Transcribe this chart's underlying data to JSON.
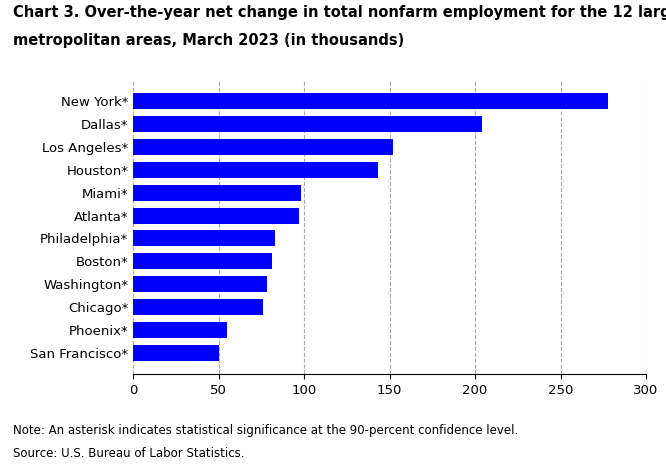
{
  "title_line1": "Chart 3. Over-the-year net change in total nonfarm employment for the 12 largest",
  "title_line2": "metropolitan areas, March 2023 (in thousands)",
  "categories": [
    "San Francisco*",
    "Phoenix*",
    "Chicago*",
    "Washington*",
    "Boston*",
    "Philadelphia*",
    "Atlanta*",
    "Miami*",
    "Houston*",
    "Los Angeles*",
    "Dallas*",
    "New York*"
  ],
  "values": [
    50,
    55,
    76,
    78,
    81,
    83,
    97,
    98,
    143,
    152,
    204,
    278
  ],
  "bar_color": "#0000FF",
  "xlim": [
    0,
    300
  ],
  "xticks": [
    0,
    50,
    100,
    150,
    200,
    250,
    300
  ],
  "note": "Note: An asterisk indicates statistical significance at the 90-percent confidence level.",
  "source": "Source: U.S. Bureau of Labor Statistics.",
  "title_fontsize": 10.5,
  "tick_fontsize": 9.5,
  "note_fontsize": 8.5,
  "background_color": "#FFFFFF",
  "grid_color": "#AAAAAA"
}
